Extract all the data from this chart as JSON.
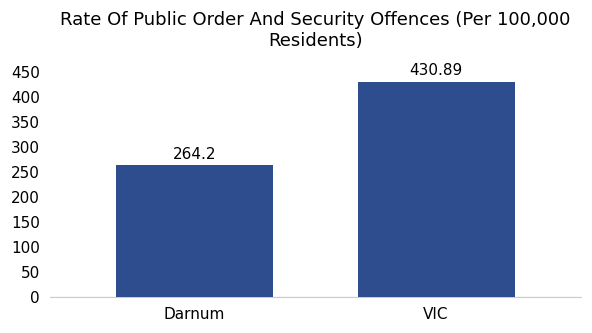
{
  "categories": [
    "Darnum",
    "VIC"
  ],
  "values": [
    264.2,
    430.89
  ],
  "bar_color": "#2d4d8e",
  "title": "Rate Of Public Order And Security Offences (Per 100,000 Residents)",
  "title_fontsize": 13,
  "ylim": [
    0,
    475
  ],
  "yticks": [
    0,
    50,
    100,
    150,
    200,
    250,
    300,
    350,
    400,
    450
  ],
  "label_fontsize": 11,
  "tick_label_fontsize": 11,
  "bar_width": 0.65,
  "background_color": "#ffffff",
  "value_labels": [
    "264.2",
    "430.89"
  ],
  "x_positions": [
    0,
    1
  ]
}
